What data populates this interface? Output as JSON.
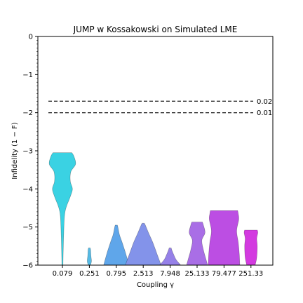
{
  "chart_data": {
    "type": "violin",
    "title": "JUMP w Kossakowski on Simulated LME",
    "xlabel": "Coupling γ",
    "ylabel": "Infidelity (1 − F)",
    "ylim": [
      -6,
      0
    ],
    "yticks": [
      0,
      -1,
      -2,
      -3,
      -4,
      -5,
      -6
    ],
    "ytick_labels": [
      "0",
      "−1",
      "−2",
      "−3",
      "−4",
      "−5",
      "−6"
    ],
    "grid": false,
    "categories": [
      "0.079",
      "0.251",
      "0.795",
      "2.513",
      "7.948",
      "25.133",
      "79.477",
      "251.33"
    ],
    "colors": [
      "#3ad2e3",
      "#55bbe6",
      "#5fa6ea",
      "#8393ea",
      "#9580e8",
      "#a96ee6",
      "#bc4ee3",
      "#d33ae0"
    ],
    "violins": [
      {
        "profile": [
          [
            -6.0,
            0.05
          ],
          [
            -5.2,
            0.12
          ],
          [
            -4.6,
            0.25
          ],
          [
            -4.2,
            0.75
          ],
          [
            -4.0,
            0.95
          ],
          [
            -3.8,
            0.75
          ],
          [
            -3.55,
            0.8
          ],
          [
            -3.35,
            1.25
          ],
          [
            -3.15,
            1.1
          ],
          [
            -3.05,
            0.9
          ]
        ]
      },
      {
        "profile": [
          [
            -6.0,
            0.1
          ],
          [
            -5.9,
            0.2
          ],
          [
            -5.75,
            0.15
          ],
          [
            -5.6,
            0.12
          ],
          [
            -5.55,
            0.08
          ]
        ]
      },
      {
        "profile": [
          [
            -6.0,
            1.2
          ],
          [
            -5.7,
            0.9
          ],
          [
            -5.4,
            0.55
          ],
          [
            -5.2,
            0.3
          ],
          [
            -5.0,
            0.15
          ],
          [
            -4.95,
            0.1
          ]
        ]
      },
      {
        "profile": [
          [
            -6.0,
            1.7
          ],
          [
            -5.7,
            1.3
          ],
          [
            -5.4,
            0.9
          ],
          [
            -5.15,
            0.5
          ],
          [
            -4.95,
            0.2
          ],
          [
            -4.9,
            0.1
          ]
        ]
      },
      {
        "profile": [
          [
            -6.0,
            1.0
          ],
          [
            -5.85,
            0.55
          ],
          [
            -5.7,
            0.3
          ],
          [
            -5.6,
            0.15
          ],
          [
            -5.55,
            0.1
          ]
        ]
      },
      {
        "profile": [
          [
            -6.0,
            1.0
          ],
          [
            -5.85,
            0.85
          ],
          [
            -5.6,
            0.6
          ],
          [
            -5.35,
            0.45
          ],
          [
            -5.15,
            0.75
          ],
          [
            -4.95,
            0.6
          ],
          [
            -4.87,
            0.5
          ]
        ]
      },
      {
        "profile": [
          [
            -6.0,
            1.5
          ],
          [
            -5.7,
            1.45
          ],
          [
            -5.4,
            1.35
          ],
          [
            -5.1,
            1.2
          ],
          [
            -4.8,
            1.4
          ],
          [
            -4.65,
            1.35
          ],
          [
            -4.57,
            1.3
          ]
        ]
      },
      {
        "profile": [
          [
            -6.0,
            0.4
          ],
          [
            -5.8,
            0.55
          ],
          [
            -5.5,
            0.6
          ],
          [
            -5.3,
            0.55
          ],
          [
            -5.15,
            0.65
          ],
          [
            -5.08,
            0.6
          ]
        ]
      }
    ],
    "reference_lines": [
      {
        "y": -1.699,
        "label": "0.02",
        "style": "dashed",
        "color": "#333333"
      },
      {
        "y": -2.0,
        "label": "0.01",
        "style": "dashed",
        "color": "#333333"
      }
    ]
  }
}
